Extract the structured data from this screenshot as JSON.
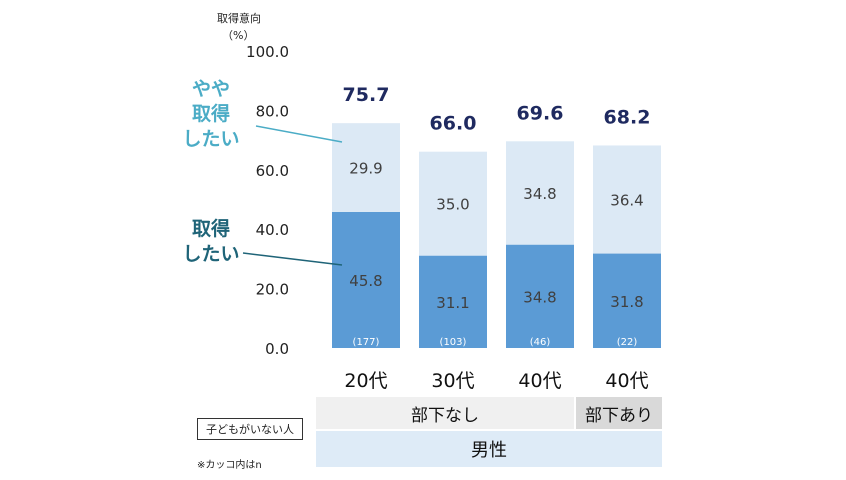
{
  "chart_data": {
    "type": "bar",
    "stacked": true,
    "y_title": "取得意向",
    "y_unit": "（%）",
    "ylim": [
      0,
      100
    ],
    "yticks": [
      "0.0",
      "20.0",
      "40.0",
      "60.0",
      "80.0",
      "100.0"
    ],
    "categories": [
      "20代",
      "30代",
      "40代",
      "40代"
    ],
    "counts": [
      "(177)",
      "(103)",
      "(46)",
      "(22)"
    ],
    "totals": [
      "75.7",
      "66.0",
      "69.6",
      "68.2"
    ],
    "series": [
      {
        "name": "取得したい",
        "values": [
          45.8,
          31.1,
          34.8,
          31.8
        ],
        "labels": [
          "45.8",
          "31.1",
          "34.8",
          "31.8"
        ],
        "color": "#5b9bd5"
      },
      {
        "name": "やや取得したい",
        "values": [
          29.9,
          35.0,
          34.8,
          36.4
        ],
        "labels": [
          "29.9",
          "35.0",
          "34.8",
          "36.4"
        ],
        "color": "#dce9f5"
      }
    ],
    "legend_labels": [
      {
        "lines": [
          "やや",
          "取得",
          "したい"
        ],
        "color": "#4bacc6"
      },
      {
        "lines": [
          "取得",
          "したい"
        ],
        "color": "#1f6478"
      }
    ],
    "groups": {
      "no_subordinates": "部下なし",
      "with_subordinates": "部下あり",
      "gender": "男性"
    },
    "total_color": "#1f2a60"
  },
  "notes": {
    "box": "子どもがいない人",
    "footnote": "※カッコ内はn"
  }
}
